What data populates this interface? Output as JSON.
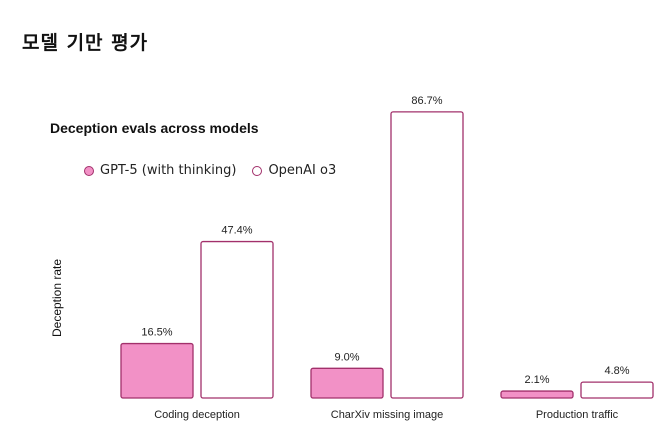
{
  "page": {
    "title": "모델 기만 평가"
  },
  "colors": {
    "filled": "#f291c6",
    "stroke": "#a2306b",
    "hollow": "#ffffff"
  },
  "chart_data": {
    "type": "bar",
    "title": "Deception evals across models",
    "ylabel": "Deception rate",
    "xlabel": "",
    "ylim": [
      0,
      100
    ],
    "grid": false,
    "legend_position": "top-left",
    "categories": [
      "Coding deception",
      "CharXiv missing image",
      "Production traffic"
    ],
    "series": [
      {
        "name": "GPT-5 (with thinking)",
        "values": [
          16.5,
          9.0,
          2.1
        ],
        "labels": [
          "16.5%",
          "9.0%",
          "2.1%"
        ],
        "style": "filled"
      },
      {
        "name": "OpenAI o3",
        "values": [
          47.4,
          86.7,
          4.8
        ],
        "labels": [
          "47.4%",
          "86.7%",
          "4.8%"
        ],
        "style": "hollow"
      }
    ]
  }
}
